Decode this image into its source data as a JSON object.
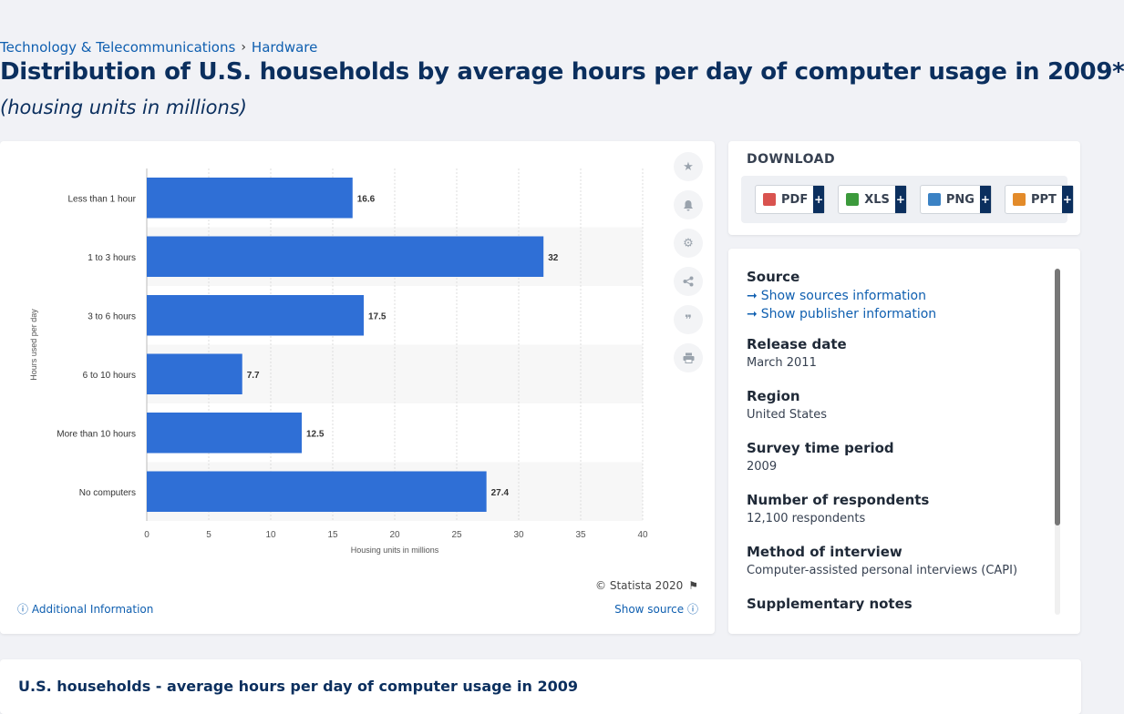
{
  "breadcrumb": {
    "category": "Technology & Telecommunications",
    "subcategory": "Hardware"
  },
  "page": {
    "title": "Distribution of U.S. households by average hours per day of computer usage in 2009*",
    "subtitle": "(housing units in millions)",
    "bottom_title": "U.S. households - average hours per day of computer usage in 2009"
  },
  "chart_data": {
    "type": "bar",
    "orientation": "horizontal",
    "categories": [
      "Less than 1 hour",
      "1 to 3 hours",
      "3 to 6 hours",
      "6 to 10 hours",
      "More than 10 hours",
      "No computers"
    ],
    "values": [
      16.6,
      32,
      17.5,
      7.7,
      12.5,
      27.4
    ],
    "xlabel": "Housing units in millions",
    "ylabel": "Hours used per day",
    "xlim": [
      0,
      40
    ],
    "xticks": [
      0,
      5,
      10,
      15,
      20,
      25,
      30,
      35,
      40
    ],
    "bar_color": "#2f6fd6",
    "grid": true
  },
  "chart_footer": {
    "copyright": "© Statista 2020",
    "additional_info": "Additional Information",
    "show_source": "Show source"
  },
  "download": {
    "title": "DOWNLOAD",
    "buttons": [
      {
        "label": "PDF",
        "color": "#d9534f"
      },
      {
        "label": "XLS",
        "color": "#3c9a3c"
      },
      {
        "label": "PNG",
        "color": "#3b82c4"
      },
      {
        "label": "PPT",
        "color": "#e38b2a"
      }
    ],
    "plus": "+"
  },
  "info": {
    "source_label": "Source",
    "show_sources": "Show sources information",
    "show_publisher": "Show publisher information",
    "release_label": "Release date",
    "release_value": "March 2011",
    "region_label": "Region",
    "region_value": "United States",
    "survey_label": "Survey time period",
    "survey_value": "2009",
    "respondents_label": "Number of respondents",
    "respondents_value": "12,100 respondents",
    "method_label": "Method of interview",
    "method_value": "Computer-assisted personal interviews (CAPI)",
    "supplementary_label": "Supplementary notes"
  }
}
